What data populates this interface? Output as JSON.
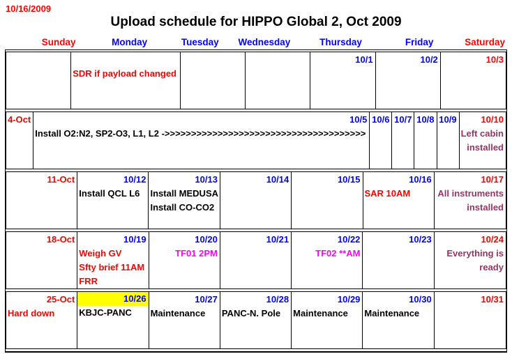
{
  "meta": {
    "corner_date": "10/16/2009",
    "title": "Upload schedule for HIPPO Global 2, Oct 2009"
  },
  "colors": {
    "red": "#ff0000",
    "blue": "#0000ff",
    "black": "#000000",
    "plum": "#993366",
    "magenta": "#ff00ff",
    "highlight": "#ffff00",
    "grid": "#000000"
  },
  "day_headers": [
    {
      "label": "Sunday",
      "color": "red"
    },
    {
      "label": "Monday",
      "color": "blue"
    },
    {
      "label": "Tuesday",
      "color": "blue"
    },
    {
      "label": "Wednesday",
      "color": "blue"
    },
    {
      "label": "Thursday",
      "color": "blue"
    },
    {
      "label": "Friday",
      "color": "blue"
    },
    {
      "label": "Saturday",
      "color": "red"
    }
  ],
  "weeks": [
    {
      "cells": [
        {
          "date": "",
          "date_color": "red",
          "lines": []
        },
        {
          "date": "",
          "date_color": "blue",
          "lines": [
            {
              "text": "SDR if payload changed",
              "color": "red",
              "align": "left",
              "overflow": true
            }
          ]
        },
        {
          "date": "",
          "date_color": "blue",
          "lines": []
        },
        {
          "date": "",
          "date_color": "blue",
          "lines": []
        },
        {
          "date": "10/1",
          "date_color": "blue",
          "lines": []
        },
        {
          "date": "10/2",
          "date_color": "blue",
          "lines": []
        },
        {
          "date": "10/3",
          "date_color": "red",
          "lines": []
        }
      ]
    },
    {
      "cells": [
        {
          "date": "4-Oct",
          "date_color": "red",
          "lines": []
        },
        {
          "date": "10/5",
          "date_color": "blue",
          "lines": [
            {
              "text": "Install O2:N2, SP2-O3, L1, L2 ->>>>>>>>>>>>>>>>>>>>>>>>>>>>>>>>>>>>>>",
              "color": "black",
              "align": "left",
              "overflow": true
            }
          ]
        },
        {
          "date": "10/6",
          "date_color": "blue",
          "lines": []
        },
        {
          "date": "10/7",
          "date_color": "blue",
          "lines": []
        },
        {
          "date": "10/8",
          "date_color": "blue",
          "lines": []
        },
        {
          "date": "10/9",
          "date_color": "blue",
          "lines": []
        },
        {
          "date": "10/10",
          "date_color": "red",
          "lines": [
            {
              "text": "Left cabin",
              "color": "plum",
              "align": "right"
            },
            {
              "text": "installed",
              "color": "plum",
              "align": "right"
            }
          ]
        }
      ]
    },
    {
      "cells": [
        {
          "date": "11-Oct",
          "date_color": "red",
          "lines": []
        },
        {
          "date": "10/12",
          "date_color": "blue",
          "lines": [
            {
              "text": "Install QCL L6",
              "color": "black",
              "align": "left"
            }
          ]
        },
        {
          "date": "10/13",
          "date_color": "blue",
          "lines": [
            {
              "text": "Install MEDUSA",
              "color": "black",
              "align": "left"
            },
            {
              "text": "Install CO-CO2",
              "color": "black",
              "align": "left"
            }
          ]
        },
        {
          "date": "10/14",
          "date_color": "blue",
          "lines": []
        },
        {
          "date": "10/15",
          "date_color": "blue",
          "lines": []
        },
        {
          "date": "10/16",
          "date_color": "blue",
          "lines": [
            {
              "text": "SAR 10AM",
              "color": "red",
              "align": "left"
            }
          ]
        },
        {
          "date": "10/17",
          "date_color": "red",
          "lines": [
            {
              "text": "All instruments",
              "color": "plum",
              "align": "right"
            },
            {
              "text": "installed",
              "color": "plum",
              "align": "right"
            }
          ]
        }
      ]
    },
    {
      "cells": [
        {
          "date": "18-Oct",
          "date_color": "red",
          "lines": []
        },
        {
          "date": "10/19",
          "date_color": "blue",
          "lines": [
            {
              "text": "Weigh GV",
              "color": "red",
              "align": "left"
            },
            {
              "text": "Sfty brief 11AM",
              "color": "red",
              "align": "left"
            },
            {
              "text": "FRR",
              "color": "red",
              "align": "left"
            }
          ]
        },
        {
          "date": "10/20",
          "date_color": "blue",
          "lines": [
            {
              "text": "TF01 2PM",
              "color": "magenta",
              "align": "right"
            }
          ]
        },
        {
          "date": "10/21",
          "date_color": "blue",
          "lines": []
        },
        {
          "date": "10/22",
          "date_color": "blue",
          "lines": [
            {
              "text": "TF02 **AM",
              "color": "magenta",
              "align": "right"
            }
          ]
        },
        {
          "date": "10/23",
          "date_color": "blue",
          "lines": []
        },
        {
          "date": "10/24",
          "date_color": "red",
          "lines": [
            {
              "text": "Everything is",
              "color": "plum",
              "align": "right"
            },
            {
              "text": "ready",
              "color": "plum",
              "align": "right"
            }
          ]
        }
      ]
    },
    {
      "cells": [
        {
          "date": "25-Oct",
          "date_color": "red",
          "lines": [
            {
              "text": "Hard down",
              "color": "red",
              "align": "left"
            }
          ]
        },
        {
          "date": "10/26",
          "date_color": "blue",
          "date_highlight": true,
          "lines": [
            {
              "text": "KBJC-PANC",
              "color": "black",
              "align": "left"
            }
          ]
        },
        {
          "date": "10/27",
          "date_color": "blue",
          "lines": [
            {
              "text": "Maintenance",
              "color": "black",
              "align": "left"
            }
          ]
        },
        {
          "date": "10/28",
          "date_color": "blue",
          "lines": [
            {
              "text": "PANC-N. Pole",
              "color": "black",
              "align": "left"
            }
          ]
        },
        {
          "date": "10/29",
          "date_color": "blue",
          "lines": [
            {
              "text": "Maintenance",
              "color": "black",
              "align": "left"
            }
          ]
        },
        {
          "date": "10/30",
          "date_color": "blue",
          "lines": [
            {
              "text": "Maintenance",
              "color": "black",
              "align": "left"
            }
          ]
        },
        {
          "date": "10/31",
          "date_color": "red",
          "lines": []
        }
      ]
    }
  ]
}
